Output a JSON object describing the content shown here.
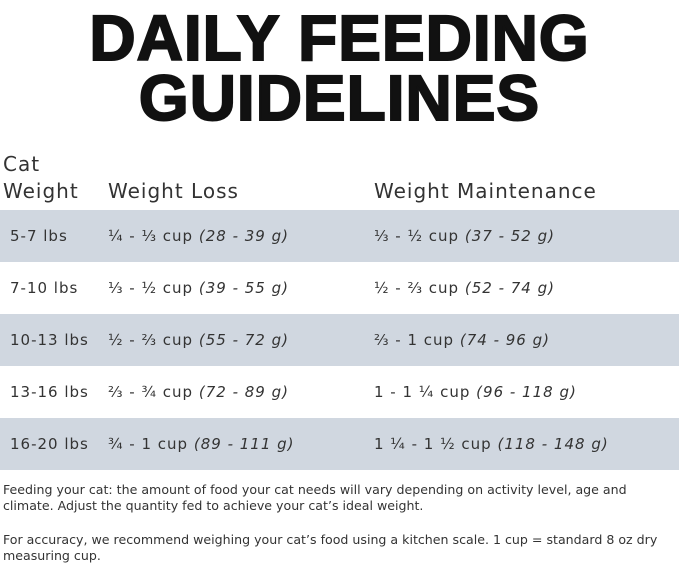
{
  "header": {
    "title": [
      "DAILY FEEDING",
      "GUIDELINES"
    ]
  },
  "table": {
    "columns": [
      "Cat Weight",
      "Weight Loss",
      "Weight Maintenance"
    ],
    "rows": [
      [
        "5-7 lbs",
        {
          "cup": "¼ - ⅓ cup",
          "grams": "(28 - 39 g)"
        },
        {
          "cup": "⅓ - ½ cup",
          "grams": "(37 - 52 g)"
        }
      ],
      [
        "7-10 lbs",
        {
          "cup": "⅓ - ½ cup",
          "grams": "(39 - 55 g)"
        },
        {
          "cup": "½ - ⅔ cup",
          "grams": "(52 - 74 g)"
        }
      ],
      [
        "10-13 lbs",
        {
          "cup": "½ - ⅔ cup",
          "grams": "(55 - 72 g)"
        },
        {
          "cup": "⅔ - 1 cup",
          "grams": "(74 - 96 g)"
        }
      ],
      [
        "13-16 lbs",
        {
          "cup": "⅔ - ¾ cup",
          "grams": "(72 - 89 g)"
        },
        {
          "cup": "1 - 1 ¼ cup",
          "grams": "(96 - 118 g)"
        }
      ],
      [
        "16-20 lbs",
        {
          "cup": "¾ - 1 cup",
          "grams": "(89 - 111 g)"
        },
        {
          "cup": "1 ¼ - 1 ½ cup",
          "grams": "(118 - 148 g)"
        }
      ]
    ]
  },
  "notes": [
    "Feeding your cat: the amount of food your cat needs will vary depending on activity level, age and climate. Adjust the quantity fed to achieve your cat’s ideal weight.",
    "For accuracy, we recommend weighing your cat’s food using a kitchen scale. 1 cup = standard 8 oz dry measuring cup."
  ]
}
